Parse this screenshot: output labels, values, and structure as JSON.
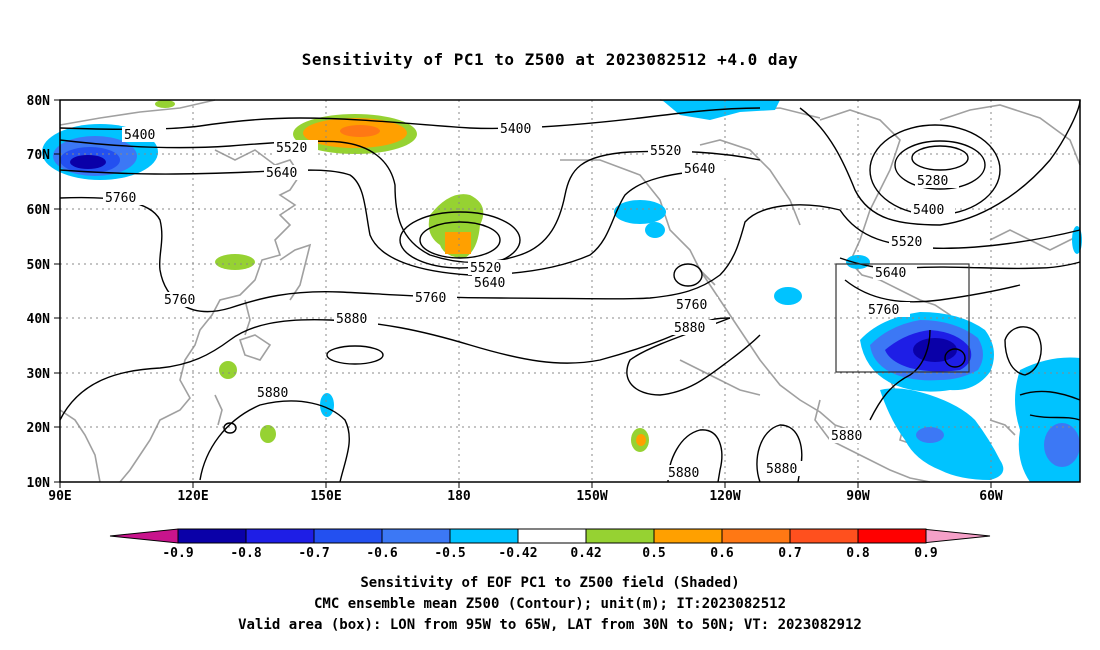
{
  "title": "Sensitivity of PC1 to Z500 at 2023082512 +4.0 day",
  "map": {
    "lat_labels": [
      "80N",
      "70N",
      "60N",
      "50N",
      "40N",
      "30N",
      "20N",
      "10N"
    ],
    "lon_labels": [
      "90E",
      "120E",
      "150E",
      "180",
      "150W",
      "120W",
      "90W",
      "60W"
    ],
    "contour_labels": [
      {
        "id": "c1",
        "text": "5400"
      },
      {
        "id": "c2",
        "text": "5400"
      },
      {
        "id": "c3",
        "text": "5520"
      },
      {
        "id": "c4",
        "text": "5520"
      },
      {
        "id": "c5",
        "text": "5640"
      },
      {
        "id": "c6",
        "text": "5640"
      },
      {
        "id": "c7",
        "text": "5760"
      },
      {
        "id": "c8",
        "text": "5760"
      },
      {
        "id": "c9",
        "text": "5520"
      },
      {
        "id": "c10",
        "text": "5640"
      },
      {
        "id": "c11",
        "text": "5760"
      },
      {
        "id": "c12",
        "text": "5880"
      },
      {
        "id": "c13",
        "text": "5880"
      },
      {
        "id": "c14",
        "text": "5760"
      },
      {
        "id": "c15",
        "text": "5880"
      },
      {
        "id": "c16",
        "text": "5280"
      },
      {
        "id": "c17",
        "text": "5400"
      },
      {
        "id": "c18",
        "text": "5520"
      },
      {
        "id": "c19",
        "text": "5640"
      },
      {
        "id": "c20",
        "text": "5760"
      },
      {
        "id": "c21",
        "text": "5880"
      },
      {
        "id": "c22",
        "text": "5880"
      },
      {
        "id": "c23",
        "text": "5880"
      }
    ]
  },
  "colorbar": {
    "labels": [
      "-0.9",
      "-0.8",
      "-0.7",
      "-0.6",
      "-0.5",
      "-0.42",
      "0.42",
      "0.5",
      "0.6",
      "0.7",
      "0.8",
      "0.9"
    ],
    "colors": [
      "#0a00a8",
      "#1e1ee6",
      "#2350f0",
      "#3c78f5",
      "#00c3ff",
      "#ffffff",
      "#96d232",
      "#ffa000",
      "#ff7814",
      "#ff501e",
      "#ff0000"
    ],
    "left_tip_color": "#c8148c",
    "right_tip_color": "#f5a0c8"
  },
  "captions": {
    "line1": "Sensitivity of EOF PC1 to Z500 field (Shaded)",
    "line2": "CMC ensemble mean Z500 (Contour); unit(m); IT:2023082512",
    "line3": "Valid area (box): LON from 95W to 65W, LAT from 30N to 50N; VT: 2023082912"
  }
}
